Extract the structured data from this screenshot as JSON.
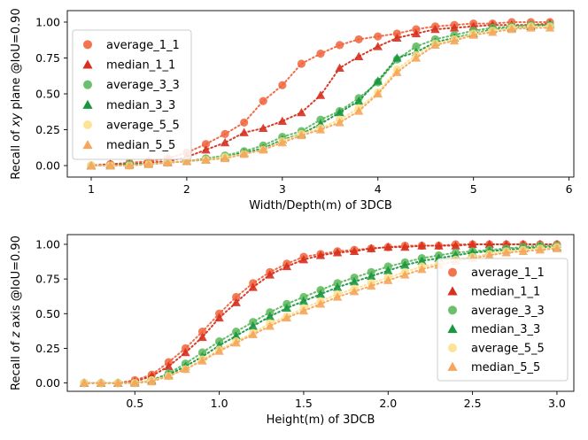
{
  "chart_data": [
    {
      "type": "scatter",
      "xlabel": "Width/Depth(m) of 3DCB",
      "ylabel": "Recall of xy plane @IoU=0.90",
      "ylabel_prefix": "Recall of ",
      "ylabel_italic": "xy",
      "ylabel_suffix": " plane @IoU=0.90",
      "xlim": [
        0.75,
        6.05
      ],
      "ylim": [
        -0.08,
        1.08
      ],
      "xticks": [
        1,
        2,
        3,
        4,
        5,
        6
      ],
      "xtick_labels": [
        "1",
        "2",
        "3",
        "4",
        "5",
        "6"
      ],
      "yticks": [
        0.0,
        0.25,
        0.5,
        0.75,
        1.0
      ],
      "ytick_labels": [
        "0.00",
        "0.25",
        "0.50",
        "0.75",
        "1.00"
      ],
      "legend_position": "upper-left",
      "x": [
        1.0,
        1.2,
        1.4,
        1.6,
        1.8,
        2.0,
        2.2,
        2.4,
        2.6,
        2.8,
        3.0,
        3.2,
        3.4,
        3.6,
        3.8,
        4.0,
        4.2,
        4.4,
        4.6,
        4.8,
        5.0,
        5.2,
        5.4,
        5.6,
        5.8
      ],
      "series": [
        {
          "name": "average_1_1",
          "marker": "circle",
          "color": "#f0643c",
          "values": [
            0.0,
            0.01,
            0.02,
            0.03,
            0.05,
            0.09,
            0.15,
            0.22,
            0.3,
            0.45,
            0.56,
            0.71,
            0.78,
            0.84,
            0.88,
            0.9,
            0.92,
            0.95,
            0.97,
            0.98,
            0.99,
            0.99,
            1.0,
            1.0,
            1.0
          ]
        },
        {
          "name": "median_1_1",
          "marker": "triangle",
          "color": "#d7301f",
          "values": [
            0.0,
            0.01,
            0.01,
            0.02,
            0.03,
            0.06,
            0.11,
            0.16,
            0.23,
            0.26,
            0.31,
            0.37,
            0.49,
            0.68,
            0.76,
            0.83,
            0.89,
            0.92,
            0.95,
            0.96,
            0.97,
            0.98,
            0.98,
            0.98,
            0.99
          ]
        },
        {
          "name": "average_3_3",
          "marker": "circle",
          "color": "#5cb85c",
          "values": [
            0.0,
            0.0,
            0.01,
            0.01,
            0.02,
            0.03,
            0.05,
            0.07,
            0.1,
            0.14,
            0.2,
            0.24,
            0.32,
            0.38,
            0.47,
            0.58,
            0.74,
            0.83,
            0.88,
            0.91,
            0.94,
            0.96,
            0.97,
            0.98,
            0.98
          ]
        },
        {
          "name": "median_3_3",
          "marker": "triangle",
          "color": "#1a9641",
          "values": [
            0.0,
            0.0,
            0.01,
            0.01,
            0.02,
            0.03,
            0.04,
            0.06,
            0.09,
            0.12,
            0.18,
            0.22,
            0.29,
            0.37,
            0.45,
            0.59,
            0.75,
            0.79,
            0.86,
            0.89,
            0.92,
            0.95,
            0.96,
            0.97,
            0.98
          ]
        },
        {
          "name": "average_5_5",
          "marker": "circle",
          "color": "#fde08b",
          "values": [
            0.0,
            0.0,
            0.0,
            0.01,
            0.02,
            0.03,
            0.04,
            0.06,
            0.08,
            0.11,
            0.17,
            0.22,
            0.26,
            0.32,
            0.4,
            0.51,
            0.67,
            0.77,
            0.85,
            0.88,
            0.92,
            0.94,
            0.96,
            0.97,
            0.97
          ]
        },
        {
          "name": "median_5_5",
          "marker": "triangle",
          "color": "#f6a55c",
          "values": [
            0.0,
            0.0,
            0.0,
            0.01,
            0.02,
            0.03,
            0.04,
            0.05,
            0.08,
            0.11,
            0.16,
            0.21,
            0.25,
            0.3,
            0.38,
            0.5,
            0.65,
            0.75,
            0.84,
            0.87,
            0.91,
            0.93,
            0.95,
            0.96,
            0.96
          ]
        }
      ]
    },
    {
      "type": "scatter",
      "xlabel": "Height(m) of 3DCB",
      "ylabel": "Recall of z axis @IoU=0.90",
      "ylabel_prefix": "Recall of ",
      "ylabel_italic": "z",
      "ylabel_suffix": " axis @IoU=0.90",
      "xlim": [
        0.1,
        3.1
      ],
      "ylim": [
        -0.06,
        1.07
      ],
      "xticks": [
        0.5,
        1.0,
        1.5,
        2.0,
        2.5,
        3.0
      ],
      "xtick_labels": [
        "0.5",
        "1.0",
        "1.5",
        "2.0",
        "2.5",
        "3.0"
      ],
      "yticks": [
        0.0,
        0.25,
        0.5,
        0.75,
        1.0
      ],
      "ytick_labels": [
        "0.00",
        "0.25",
        "0.50",
        "0.75",
        "1.00"
      ],
      "legend_position": "lower-right",
      "x": [
        0.2,
        0.3,
        0.4,
        0.5,
        0.6,
        0.7,
        0.8,
        0.9,
        1.0,
        1.1,
        1.2,
        1.3,
        1.4,
        1.5,
        1.6,
        1.7,
        1.8,
        1.9,
        2.0,
        2.1,
        2.2,
        2.3,
        2.4,
        2.5,
        2.6,
        2.7,
        2.8,
        2.9,
        3.0
      ],
      "series": [
        {
          "name": "average_1_1",
          "marker": "circle",
          "color": "#f0643c",
          "values": [
            0.0,
            0.0,
            0.0,
            0.02,
            0.06,
            0.15,
            0.25,
            0.37,
            0.5,
            0.62,
            0.72,
            0.8,
            0.86,
            0.91,
            0.93,
            0.95,
            0.96,
            0.97,
            0.98,
            0.99,
            0.99,
            0.99,
            1.0,
            1.0,
            1.0,
            1.0,
            1.0,
            1.0,
            1.0
          ]
        },
        {
          "name": "median_1_1",
          "marker": "triangle",
          "color": "#d7301f",
          "values": [
            0.0,
            0.0,
            0.0,
            0.01,
            0.05,
            0.12,
            0.22,
            0.33,
            0.47,
            0.58,
            0.69,
            0.78,
            0.84,
            0.89,
            0.92,
            0.94,
            0.95,
            0.97,
            0.98,
            0.98,
            0.99,
            0.99,
            0.99,
            1.0,
            1.0,
            1.0,
            1.0,
            1.0,
            1.0
          ]
        },
        {
          "name": "average_3_3",
          "marker": "circle",
          "color": "#5cb85c",
          "values": [
            0.0,
            0.0,
            0.0,
            0.0,
            0.02,
            0.07,
            0.14,
            0.22,
            0.3,
            0.37,
            0.44,
            0.51,
            0.57,
            0.62,
            0.67,
            0.72,
            0.76,
            0.8,
            0.84,
            0.87,
            0.9,
            0.92,
            0.94,
            0.95,
            0.96,
            0.97,
            0.98,
            0.99,
            0.99
          ]
        },
        {
          "name": "median_3_3",
          "marker": "triangle",
          "color": "#1a9641",
          "values": [
            0.0,
            0.0,
            0.0,
            0.0,
            0.02,
            0.06,
            0.12,
            0.19,
            0.27,
            0.34,
            0.41,
            0.48,
            0.54,
            0.59,
            0.64,
            0.69,
            0.73,
            0.77,
            0.81,
            0.85,
            0.88,
            0.9,
            0.92,
            0.94,
            0.95,
            0.96,
            0.97,
            0.98,
            0.98
          ]
        },
        {
          "name": "average_5_5",
          "marker": "circle",
          "color": "#fde08b",
          "values": [
            0.0,
            0.0,
            0.0,
            0.0,
            0.02,
            0.05,
            0.1,
            0.17,
            0.24,
            0.3,
            0.36,
            0.43,
            0.48,
            0.54,
            0.59,
            0.64,
            0.68,
            0.72,
            0.76,
            0.8,
            0.84,
            0.86,
            0.89,
            0.91,
            0.93,
            0.95,
            0.96,
            0.97,
            0.98
          ]
        },
        {
          "name": "median_5_5",
          "marker": "triangle",
          "color": "#f6a55c",
          "values": [
            0.0,
            0.0,
            0.0,
            0.0,
            0.01,
            0.05,
            0.1,
            0.16,
            0.23,
            0.29,
            0.35,
            0.41,
            0.47,
            0.52,
            0.57,
            0.62,
            0.66,
            0.7,
            0.74,
            0.78,
            0.82,
            0.85,
            0.88,
            0.9,
            0.92,
            0.94,
            0.95,
            0.96,
            0.97
          ]
        }
      ]
    }
  ]
}
